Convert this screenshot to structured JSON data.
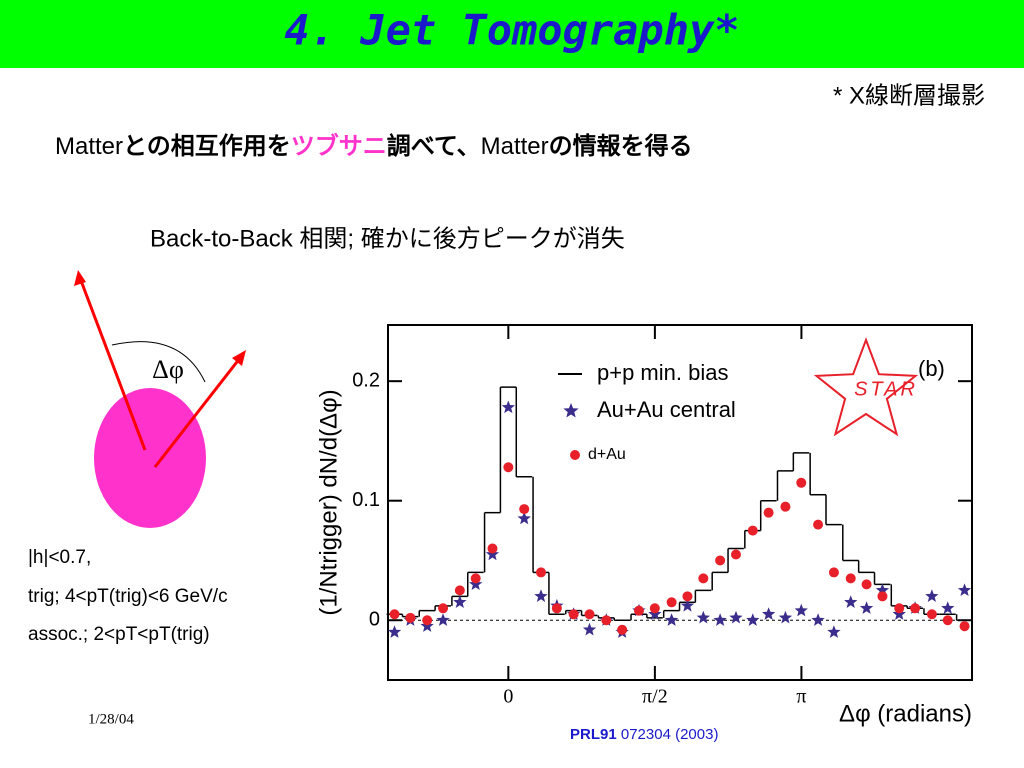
{
  "header": {
    "title": "4. Jet Tomography*"
  },
  "footnote": "* X線断層撮影",
  "subtitle": {
    "parts": [
      "Matter",
      "との相互作用を",
      "ツブサニ",
      "調べて、",
      "Matter",
      "の情報を得る"
    ]
  },
  "statement": "Back-to-Back 相関;  確かに後方ピークが消失",
  "diagram": {
    "angle_label": "Δφ"
  },
  "cuts": [
    "|h|<0.7,",
    "trig; 4<pT(trig)<6 GeV/c",
    "assoc.; 2<pT<pT(trig)"
  ],
  "date": "1/28/04",
  "citation": {
    "journal": "PRL91",
    "reference": " 072304 (2003)"
  },
  "chart_data": {
    "type": "line",
    "panel_label": "(b)",
    "logo": "STAR",
    "x_label": "Δφ (radians)",
    "y_label": "(1/Ntrigger) dN/d(Δφ)",
    "x": [
      -1.22,
      -1.05,
      -0.87,
      -0.7,
      -0.52,
      -0.35,
      -0.17,
      0,
      0.17,
      0.35,
      0.52,
      0.7,
      0.87,
      1.05,
      1.22,
      1.4,
      1.57,
      1.75,
      1.92,
      2.09,
      2.27,
      2.44,
      2.62,
      2.79,
      2.97,
      3.14,
      3.32,
      3.49,
      3.67,
      3.84,
      4.01,
      4.19,
      4.36,
      4.54,
      4.71,
      4.89
    ],
    "xlim": [
      -1.29,
      4.97
    ],
    "ylim": [
      -0.05,
      0.247
    ],
    "xticks": [
      0,
      {
        "value": 1.5708,
        "label": "π/2"
      },
      {
        "value": 3.1416,
        "label": "π"
      }
    ],
    "yticks": [
      0,
      0.1,
      0.2
    ],
    "series": [
      {
        "name": "p+p min. bias",
        "color": "#000000",
        "marker": "step",
        "values": [
          0.005,
          0.003,
          0.008,
          0.012,
          0.02,
          0.04,
          0.09,
          0.195,
          0.12,
          0.04,
          0.005,
          0.008,
          0.004,
          0.002,
          0.0,
          0.005,
          0.002,
          0.008,
          0.015,
          0.025,
          0.04,
          0.06,
          0.075,
          0.1,
          0.125,
          0.14,
          0.105,
          0.08,
          0.05,
          0.04,
          0.03,
          0.012,
          0.01,
          0.005,
          0.005,
          0.0
        ]
      },
      {
        "name": "Au+Au central",
        "color": "#3b2d8c",
        "marker": "star",
        "values": [
          -0.01,
          0.0,
          -0.005,
          0.0,
          0.015,
          0.03,
          0.055,
          0.178,
          0.085,
          0.02,
          0.012,
          0.005,
          -0.008,
          0.0,
          -0.01,
          0.008,
          0.005,
          0.0,
          0.012,
          0.002,
          0.0,
          0.002,
          0.0,
          0.005,
          0.002,
          0.008,
          0.0,
          -0.01,
          0.015,
          0.01,
          0.025,
          0.005,
          0.01,
          0.02,
          0.01,
          0.025
        ]
      },
      {
        "name": "d+Au",
        "color": "#e8202a",
        "marker": "circle",
        "values": [
          0.005,
          0.002,
          0.0,
          0.01,
          0.025,
          0.035,
          0.06,
          0.128,
          0.093,
          0.04,
          0.01,
          0.005,
          0.005,
          0.0,
          -0.008,
          0.008,
          0.01,
          0.015,
          0.02,
          0.035,
          0.05,
          0.055,
          0.075,
          0.09,
          0.095,
          0.115,
          0.08,
          0.04,
          0.035,
          0.03,
          0.02,
          0.01,
          0.01,
          0.005,
          0.0,
          -0.005
        ]
      }
    ]
  }
}
